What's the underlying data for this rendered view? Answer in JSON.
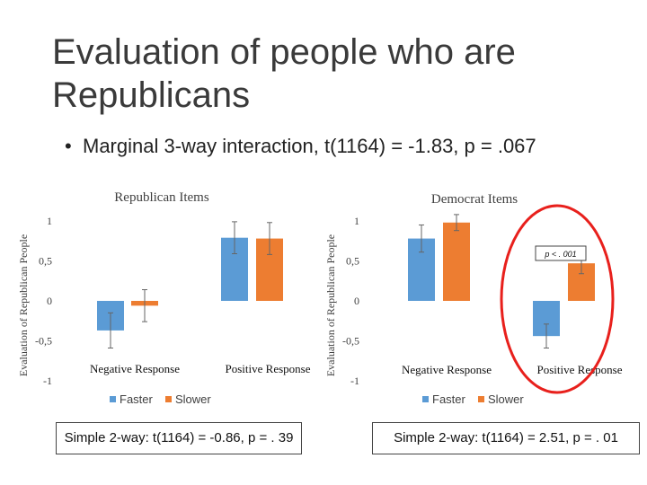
{
  "slide": {
    "title": "Evaluation of people who are Republicans",
    "bullet_prefix": "Marginal 3-way interaction, ",
    "bullet_stat": "t(1164) = -1.83, p = .067"
  },
  "colors": {
    "faster": "#5b9bd5",
    "slower": "#ed7d31",
    "error_bar": "#666666",
    "circle": "#e8201c",
    "text": "#404040"
  },
  "chart_data": [
    {
      "type": "bar",
      "title": "Republican Items",
      "ylabel": "Evaluation of Republican People",
      "categories": [
        "Negative Response",
        "Positive Response"
      ],
      "series": [
        {
          "name": "Faster",
          "values": [
            -0.37,
            0.79
          ],
          "error": [
            0.22,
            0.2
          ]
        },
        {
          "name": "Slower",
          "values": [
            -0.06,
            0.78
          ],
          "error": [
            0.2,
            0.2
          ]
        }
      ],
      "ylim": [
        -1,
        1
      ],
      "yticks": [
        1,
        0.5,
        0,
        -0.5,
        -1
      ],
      "ytick_labels": [
        "1",
        "0,5",
        "0",
        "-0,5",
        "-1"
      ],
      "grid": false,
      "legend": "bottom",
      "note": "Simple 2-way: t(1164) = -0.86, p = . 39"
    },
    {
      "type": "bar",
      "title": "Democrat Items",
      "ylabel": "Evaluation of Republican People",
      "categories": [
        "Negative Response",
        "Positive Response"
      ],
      "series": [
        {
          "name": "Faster",
          "values": [
            0.78,
            -0.44
          ],
          "error": [
            0.17,
            0.15
          ]
        },
        {
          "name": "Slower",
          "values": [
            0.98,
            0.47
          ],
          "error": [
            0.1,
            0.13
          ]
        }
      ],
      "ylim": [
        -1,
        1
      ],
      "yticks": [
        1,
        0.5,
        0,
        -0.5,
        -1
      ],
      "ytick_labels": [
        "1",
        "0,5",
        "0",
        "-0,5",
        "-1"
      ],
      "grid": false,
      "legend": "bottom",
      "annotation": "p < . 001",
      "note": "Simple 2-way: t(1164) = 2.51, p = . 01"
    }
  ]
}
